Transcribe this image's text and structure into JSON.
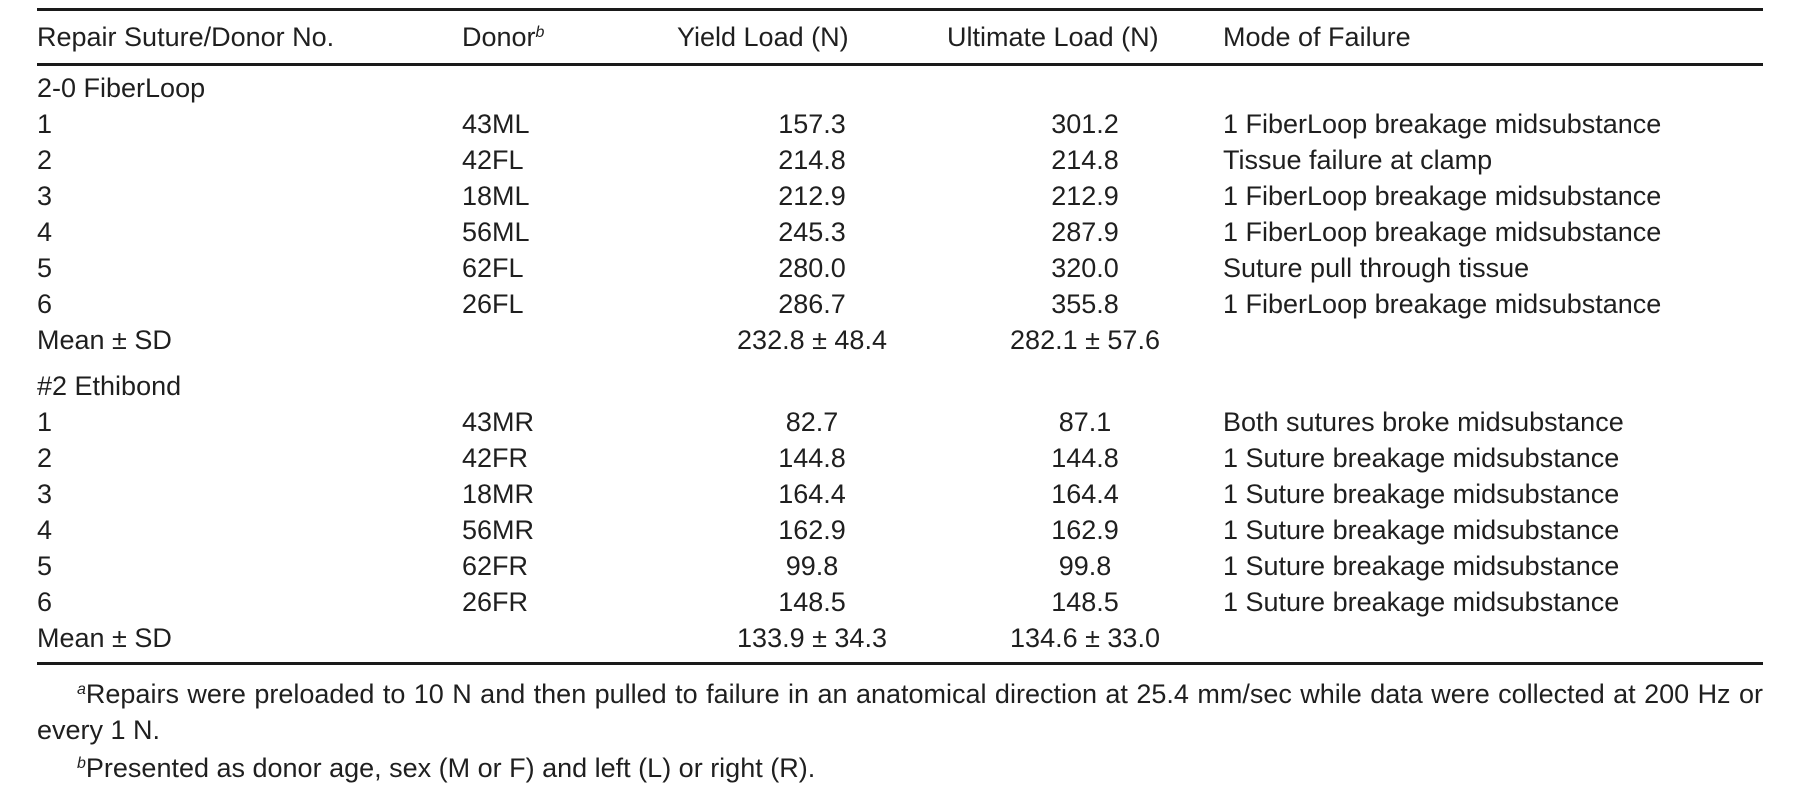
{
  "headers": {
    "suture": "Repair Suture/Donor No.",
    "donor": "Donor",
    "donor_sup": "b",
    "yield": "Yield Load (N)",
    "ultimate": "Ultimate Load (N)",
    "mode": "Mode of Failure"
  },
  "groups": [
    {
      "name": "2-0 FiberLoop",
      "rows": [
        {
          "no": "1",
          "donor": "43ML",
          "yield": "157.3",
          "ultimate": "301.2",
          "mode": "1 FiberLoop breakage midsubstance"
        },
        {
          "no": "2",
          "donor": "42FL",
          "yield": "214.8",
          "ultimate": "214.8",
          "mode": "Tissue failure at clamp"
        },
        {
          "no": "3",
          "donor": "18ML",
          "yield": "212.9",
          "ultimate": "212.9",
          "mode": "1 FiberLoop breakage midsubstance"
        },
        {
          "no": "4",
          "donor": "56ML",
          "yield": "245.3",
          "ultimate": "287.9",
          "mode": "1 FiberLoop breakage midsubstance"
        },
        {
          "no": "5",
          "donor": "62FL",
          "yield": "280.0",
          "ultimate": "320.0",
          "mode": "Suture pull through tissue"
        },
        {
          "no": "6",
          "donor": "26FL",
          "yield": "286.7",
          "ultimate": "355.8",
          "mode": "1 FiberLoop breakage midsubstance"
        }
      ],
      "mean": {
        "label": "Mean ± SD",
        "yield": "232.8 ± 48.4",
        "ultimate": "282.1 ± 57.6"
      }
    },
    {
      "name": "#2 Ethibond",
      "rows": [
        {
          "no": "1",
          "donor": "43MR",
          "yield": "82.7",
          "ultimate": "87.1",
          "mode": "Both sutures broke midsubstance"
        },
        {
          "no": "2",
          "donor": "42FR",
          "yield": "144.8",
          "ultimate": "144.8",
          "mode": "1 Suture breakage midsubstance"
        },
        {
          "no": "3",
          "donor": "18MR",
          "yield": "164.4",
          "ultimate": "164.4",
          "mode": "1 Suture breakage midsubstance"
        },
        {
          "no": "4",
          "donor": "56MR",
          "yield": "162.9",
          "ultimate": "162.9",
          "mode": "1 Suture breakage midsubstance"
        },
        {
          "no": "5",
          "donor": "62FR",
          "yield": "99.8",
          "ultimate": "99.8",
          "mode": "1 Suture breakage midsubstance"
        },
        {
          "no": "6",
          "donor": "26FR",
          "yield": "148.5",
          "ultimate": "148.5",
          "mode": "1 Suture breakage midsubstance"
        }
      ],
      "mean": {
        "label": "Mean ± SD",
        "yield": "133.9 ± 34.3",
        "ultimate": "134.6 ± 33.0"
      }
    }
  ],
  "footnotes": {
    "a_mark": "a",
    "a_text": "Repairs were preloaded to 10 N and then pulled to failure in an anatomical direction at 25.4 mm/sec while data were collected at 200 Hz or every 1 N.",
    "b_mark": "b",
    "b_text": "Presented as donor age, sex (M or F) and left (L) or right (R)."
  }
}
